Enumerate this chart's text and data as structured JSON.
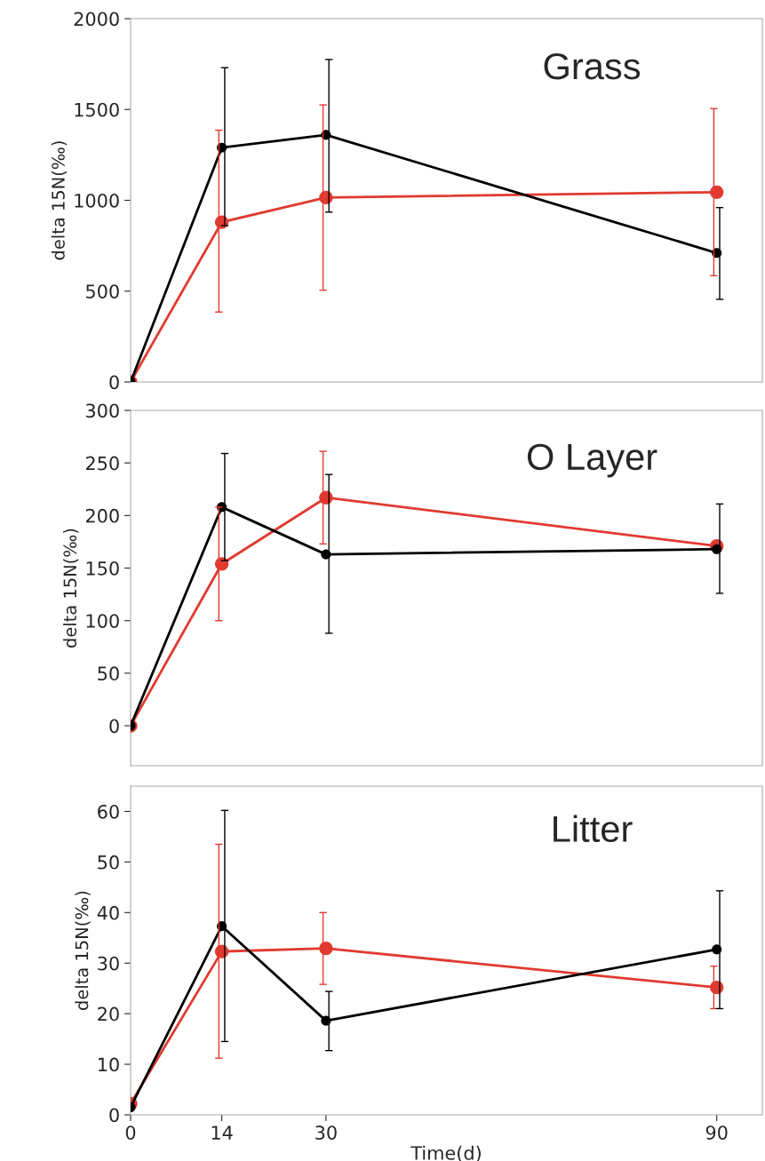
{
  "chart_data": [
    {
      "type": "line",
      "ylabel": "delta 15N(‰)",
      "annotations": [
        "Grass"
      ],
      "x": [
        0,
        14,
        30,
        90
      ],
      "xlim": [
        0,
        97
      ],
      "xticks": [
        0,
        14,
        30,
        90
      ],
      "ylim": [
        0,
        2000
      ],
      "yticks": [
        0,
        500,
        1000,
        1500,
        2000
      ],
      "tick_labels": "y",
      "marker": "circle",
      "grid": false,
      "series": [
        {
          "color": "#e03a30",
          "values": [
            0,
            880,
            1015,
            1045
          ],
          "errors": [
            null,
            [
              385,
              1386
            ],
            [
              505,
              1525
            ],
            [
              585,
              1505
            ]
          ]
        },
        {
          "color": "#000000",
          "values": [
            0,
            1290,
            1360,
            710
          ],
          "errors": [
            null,
            [
              861,
              1730
            ],
            [
              935,
              1775
            ],
            [
              455,
              960
            ]
          ]
        }
      ]
    },
    {
      "type": "line",
      "ylabel": "delta 15N(‰)",
      "annotations": [
        "O Layer"
      ],
      "x": [
        0,
        14,
        30,
        90
      ],
      "xlim": [
        0,
        97
      ],
      "xticks": [
        0,
        14,
        30,
        90
      ],
      "ylim": [
        -38,
        300
      ],
      "yticks": [
        0,
        50,
        100,
        150,
        200,
        250,
        300
      ],
      "tick_labels": "y",
      "marker": "circle",
      "grid": false,
      "series": [
        {
          "color": "#e03a30",
          "values": [
            0,
            154,
            217,
            171
          ],
          "errors": [
            null,
            [
              100,
              208
            ],
            [
              173,
              261
            ],
            null
          ]
        },
        {
          "color": "#000000",
          "values": [
            0,
            208,
            163,
            168
          ],
          "errors": [
            null,
            [
              157,
              259
            ],
            [
              88,
              239
            ],
            [
              126,
              211
            ]
          ]
        }
      ]
    },
    {
      "type": "line",
      "xlabel": "Time(d)",
      "ylabel": "delta 15N(‰)",
      "annotations": [
        "Litter"
      ],
      "x": [
        0,
        14,
        30,
        90
      ],
      "xlim": [
        0,
        97
      ],
      "xticks": [
        0,
        14,
        30,
        90
      ],
      "ylim": [
        0,
        65
      ],
      "yticks": [
        0,
        10,
        20,
        30,
        40,
        50,
        60
      ],
      "marker": "circle",
      "grid": false,
      "series": [
        {
          "color": "#e03a30",
          "values": [
            2.2,
            32.3,
            32.9,
            25.2
          ],
          "errors": [
            null,
            [
              11.2,
              53.5
            ],
            [
              25.8,
              40.0
            ],
            [
              21.0,
              29.4
            ]
          ]
        },
        {
          "color": "#000000",
          "values": [
            1.5,
            37.3,
            18.6,
            32.7
          ],
          "errors": [
            null,
            [
              14.5,
              60.2
            ],
            [
              12.7,
              24.4
            ],
            [
              21.0,
              44.3
            ]
          ]
        }
      ]
    }
  ]
}
